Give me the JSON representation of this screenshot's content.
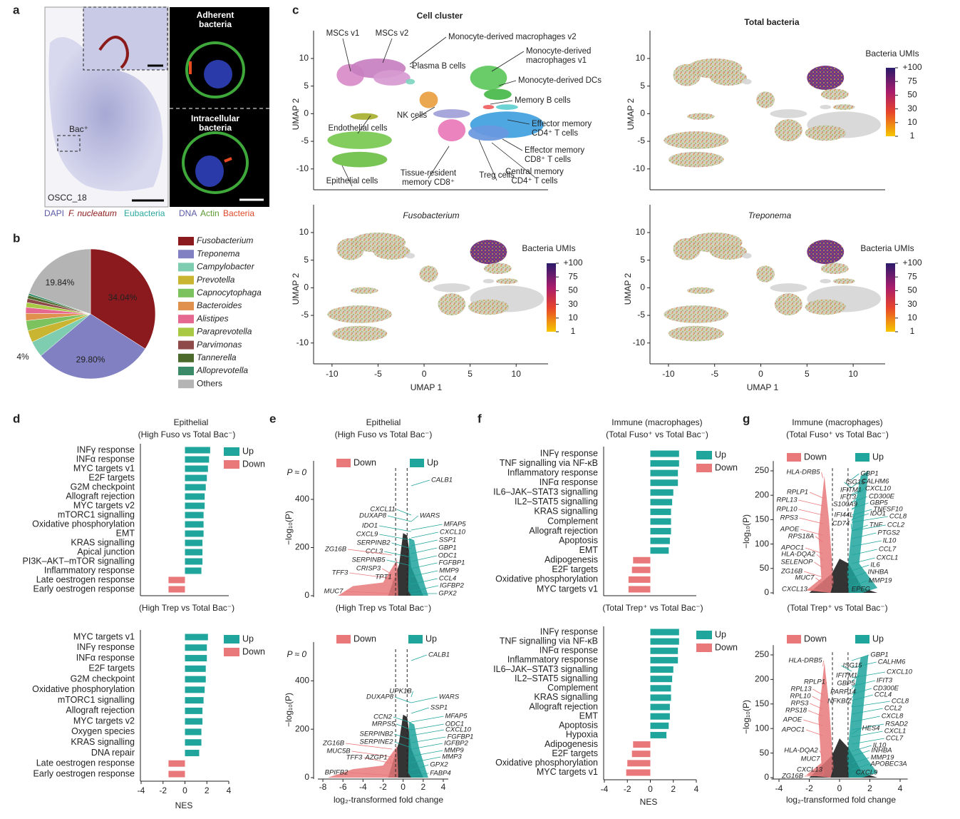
{
  "panel_labels": [
    "a",
    "b",
    "c",
    "d",
    "e",
    "f",
    "g"
  ],
  "panel_a": {
    "inset_label": "Bac⁺",
    "sample_id": "OSCC_18",
    "stain_legend": [
      "DAPI",
      "F. nucleatum",
      "Eubacteria"
    ],
    "adherent_label": [
      "Adherent",
      "bacteria"
    ],
    "intracellular_label": [
      "Intracellular",
      "bacteria"
    ],
    "channel_legend": [
      "DNA",
      "Actin",
      "Bacteria"
    ]
  },
  "chart_data": [
    {
      "type": "pie",
      "categories": [
        "Fusobacterium",
        "Treponema",
        "Campylobacter",
        "Prevotella",
        "Capnocytophaga",
        "Bacteroides",
        "Alistipes",
        "Paraprevotella",
        "Parvimonas",
        "Tannerella",
        "Alloprevotella",
        "Others"
      ],
      "values": [
        34.04,
        29.8,
        4,
        3,
        2.5,
        1.8,
        1.5,
        1.2,
        1.0,
        0.8,
        0.52,
        19.84
      ],
      "value_labels": [
        "34.04%",
        "29.80%",
        "4%",
        null,
        null,
        null,
        null,
        null,
        null,
        null,
        null,
        "19.84%"
      ],
      "colors": [
        "#8b1a1e",
        "#8080c2",
        "#7fcdb0",
        "#c9b531",
        "#7cc25e",
        "#e0914e",
        "#e4688f",
        "#a9c843",
        "#8d4a48",
        "#4b6a2c",
        "#3b8a68",
        "#b4b4b4"
      ]
    },
    {
      "type": "bar",
      "title": "Epithelial",
      "subtitle": "(High Fuso vs Total Bac⁻)",
      "xlim": [
        -4,
        4
      ],
      "categories": [
        "INFγ response",
        "INFα response",
        "MYC targets v1",
        "E2F targets",
        "G2M checkpoint",
        "Allograft rejection",
        "MYC targets v2",
        "mTORC1 signalling",
        "Oxidative phosphorylation",
        "EMT",
        "KRAS signalling",
        "Apical junction",
        "PI3K–AKT–mTOR signalling",
        "Inflammatory response",
        "Late oestrogen response",
        "Early oestrogen response"
      ],
      "values": [
        2.3,
        2.2,
        2.1,
        2.0,
        1.9,
        1.8,
        1.8,
        1.7,
        1.7,
        1.7,
        1.6,
        1.6,
        1.6,
        1.5,
        -1.5,
        -1.5
      ],
      "legend": [
        {
          "name": "Up",
          "color": "#1fa59c"
        },
        {
          "name": "Down",
          "color": "#e8787a"
        }
      ]
    },
    {
      "type": "bar",
      "subtitle": "(High Trep vs Total Bac⁻)",
      "xlim": [
        -4,
        4
      ],
      "xticks": [
        -4,
        -2,
        0,
        2,
        4
      ],
      "xlabel": "NES",
      "categories": [
        "MYC targets v1",
        "INFγ response",
        "INFα response",
        "E2F targets",
        "G2M checkpoint",
        "Oxidative phosphorylation",
        "mTORC1 signalling",
        "Allograft rejection",
        "MYC targets v2",
        "Oxygen species",
        "KRAS signalling",
        "DNA repair",
        "Late oestrogen response",
        "Early oestrogen response"
      ],
      "values": [
        2.1,
        2.0,
        2.0,
        1.9,
        1.9,
        1.8,
        1.7,
        1.6,
        1.6,
        1.5,
        1.5,
        1.3,
        -1.5,
        -1.5
      ],
      "legend": [
        {
          "name": "Up",
          "color": "#1fa59c"
        },
        {
          "name": "Down",
          "color": "#e8787a"
        }
      ]
    },
    {
      "type": "bar",
      "title": "Immune (macrophages)",
      "subtitle": "(Total Fuso⁺ vs Total Bac⁻)",
      "xlim": [
        -4,
        4
      ],
      "categories": [
        "INFγ response",
        "TNF signalling via NF-κB",
        "Inflammatory response",
        "INFα response",
        "IL6–JAK–STAT3 signalling",
        "IL2–STAT5 signalling",
        "KRAS signalling",
        "Complement",
        "Allograft rejection",
        "Apoptosis",
        "EMT",
        "Adipogenesis",
        "E2F targets",
        "Oxidative phosphorylation",
        "MYC targets v1"
      ],
      "values": [
        2.5,
        2.5,
        2.4,
        2.4,
        2.0,
        1.9,
        1.8,
        1.8,
        1.8,
        1.7,
        1.6,
        -1.5,
        -1.6,
        -1.9,
        -1.9
      ],
      "legend": [
        {
          "name": "Up",
          "color": "#1fa59c"
        },
        {
          "name": "Down",
          "color": "#e8787a"
        }
      ]
    },
    {
      "type": "bar",
      "subtitle": "(Total Trep⁺ vs Total Bac⁻)",
      "xlim": [
        -4,
        4
      ],
      "xticks": [
        -4,
        -2,
        0,
        2,
        4
      ],
      "xlabel": "NES",
      "categories": [
        "INFγ response",
        "TNF signalling via NF-κB",
        "INFα response",
        "Inflammatory response",
        "IL6–JAK–STAT3 signalling",
        "IL2–STAT5 signalling",
        "Complement",
        "KRAS signalling",
        "Allograft rejection",
        "EMT",
        "Apoptosis",
        "Hypoxia",
        "Adipogenesis",
        "E2F targets",
        "Oxidative phosphorylation",
        "MYC targets v1"
      ],
      "values": [
        2.5,
        2.5,
        2.4,
        2.4,
        2.0,
        1.9,
        1.8,
        1.8,
        1.7,
        1.7,
        1.6,
        1.4,
        -1.5,
        -1.6,
        -2.0,
        -2.1
      ],
      "legend": [
        {
          "name": "Up",
          "color": "#1fa59c"
        },
        {
          "name": "Down",
          "color": "#e8787a"
        }
      ]
    },
    {
      "type": "volcano",
      "title": "Epithelial",
      "subtitle": "(High Fuso vs Total Bac⁻)",
      "p_label": "P ≈ 0",
      "xlim": [
        -8.5,
        4.5
      ],
      "ylim": [
        0,
        560
      ],
      "yticks": [
        0,
        200,
        400
      ],
      "ylabel": "−log₁₀(P)",
      "thresholds": [
        -0.75,
        0.4
      ],
      "legend": [
        {
          "name": "Down",
          "color": "#e8787a"
        },
        {
          "name": "Up",
          "color": "#1fa59c"
        }
      ],
      "genes_up": [
        "CALB1",
        "WARS",
        "MFAP5",
        "CXCL10",
        "SSP1",
        "GBP1",
        "ODC1",
        "FGFBP1",
        "MMP9",
        "CCL4",
        "IGFBP2",
        "GPX2",
        "CXCL11",
        "DUXAP8",
        "IDO1",
        "CXCL9",
        "SERPINB2",
        "CCL3",
        "SERPINB5"
      ],
      "genes_down": [
        "ZG16B",
        "TFF3",
        "MUC7",
        "CRISP3",
        "TPT1"
      ]
    },
    {
      "type": "volcano",
      "subtitle": "(High Trep vs Total Bac⁻)",
      "p_label": "P ≈ 0",
      "xlim": [
        -8.5,
        4.5
      ],
      "ylim": [
        0,
        560
      ],
      "yticks": [
        0,
        200,
        400
      ],
      "xticks": [
        -8,
        -6,
        -4,
        -2,
        0,
        2,
        4
      ],
      "ylabel": "−log₁₀(P)",
      "xlabel": "log₂-transformed fold change",
      "thresholds": [
        -0.75,
        0.4
      ],
      "legend": [
        {
          "name": "Down",
          "color": "#e8787a"
        },
        {
          "name": "Up",
          "color": "#1fa59c"
        }
      ],
      "genes_up": [
        "CALB1",
        "UPK1B",
        "WARS",
        "SSP1",
        "MFAP5",
        "ODC1",
        "CXCL10",
        "FGFBP1",
        "IGFBP2",
        "MMP9",
        "MMP3",
        "GPX2",
        "FABP4",
        "DUXAP8",
        "CCN2",
        "MRPS5",
        "SERPINB2",
        "SERPINE2"
      ],
      "genes_down": [
        "ZG16B",
        "MUC5B",
        "TFF3",
        "AZGP1",
        "BPIFB2"
      ]
    },
    {
      "type": "volcano",
      "title": "Immune (macrophages)",
      "subtitle": "(Total Fuso⁺ vs Total Bac⁻)",
      "xlim": [
        -4.5,
        4.5
      ],
      "ylim": [
        0,
        270
      ],
      "yticks": [
        0,
        50,
        100,
        150,
        200,
        250
      ],
      "ylabel": "−log₁₀(P)",
      "thresholds": [
        -0.47,
        0.56
      ],
      "legend": [
        {
          "name": "Down",
          "color": "#e8787a"
        },
        {
          "name": "Up",
          "color": "#1fa59c"
        }
      ],
      "genes_up": [
        "GBP1",
        "CALHM6",
        "ISG15",
        "CXCL10",
        "IFITM1",
        "IFIT3",
        "CD300E",
        "GBP5",
        "S100A9",
        "TNFSF10",
        "IDO1",
        "IFI44L",
        "CCL8",
        "CD74",
        "TNF",
        "CCL2",
        "PTGS2",
        "IL10",
        "CCL7",
        "CXCL1",
        "IL6",
        "INHBA",
        "MMP19",
        "EPEG"
      ],
      "genes_down": [
        "HLA-DRB5",
        "RPLP1",
        "RPL13",
        "RPL10",
        "RPS3",
        "APOE",
        "RPS18A",
        "APOC1",
        "HLA-DQA2",
        "SELENOP",
        "ZG16B",
        "MUC7",
        "CXCL13"
      ]
    },
    {
      "type": "volcano",
      "subtitle": "(Total Trep⁺ vs Total Bac⁻)",
      "xlim": [
        -4.5,
        4.5
      ],
      "ylim": [
        0,
        270
      ],
      "yticks": [
        0,
        50,
        100,
        150,
        200,
        250
      ],
      "xticks": [
        -4,
        -2,
        0,
        2,
        4
      ],
      "ylabel": "−log₁₀(P)",
      "xlabel": "log₂-transformed fold change",
      "thresholds": [
        -0.47,
        0.56
      ],
      "legend": [
        {
          "name": "Down",
          "color": "#e8787a"
        },
        {
          "name": "Up",
          "color": "#1fa59c"
        }
      ],
      "genes_up": [
        "GBP1",
        "CALHM6",
        "ISG15",
        "CXCL10",
        "IFITM1",
        "GBP5",
        "IFIT3",
        "CD300E",
        "PARP14",
        "CCL4",
        "NFKBIZ",
        "CCL8",
        "CCL2",
        "CXCL8",
        "RSAD2",
        "HES4",
        "CXCL1",
        "CCL7",
        "IL10",
        "INHBA",
        "MMP19",
        "APOBEC3A",
        "CXCL9"
      ],
      "genes_down": [
        "HLA-DRB5",
        "RPLP1",
        "RPL13",
        "RPL10",
        "RPS3",
        "RPS18",
        "APOE",
        "APOC1",
        "HLA-DQA2",
        "MUC7",
        "CXCL13",
        "ZG16B"
      ]
    },
    {
      "type": "umap",
      "title": "Cell cluster",
      "xlim": [
        -12,
        13
      ],
      "ylim": [
        -13,
        14
      ],
      "yticks": [
        -10,
        -5,
        0,
        5,
        10
      ],
      "ylabel": "UMAP 2",
      "annotations": [
        [
          "MSCs v1"
        ],
        [
          "MSCs v2"
        ],
        [
          "Monocyte-derived macrophages v2"
        ],
        [
          "Plasma B cells"
        ],
        [
          "Monocyte-derived",
          "macrophages v1"
        ],
        [
          "Monocyte-derived DCs"
        ],
        [
          "Memory B cells"
        ],
        [
          "NK cells"
        ],
        [
          "Effector memory",
          "CD4⁺ T cells"
        ],
        [
          "Endothelial cells"
        ],
        [
          "Effector memory",
          "CD8⁺ T cells"
        ],
        [
          "Tissue-resident",
          "memory CD8⁺"
        ],
        [
          "Treg cells"
        ],
        [
          "Central memory",
          "CD4⁺ T cells"
        ],
        [
          "Epithelial cells"
        ]
      ]
    },
    {
      "type": "umap",
      "title": "Total bacteria",
      "xlim": [
        -12,
        13
      ],
      "ylim": [
        -13,
        14
      ],
      "yticks": [
        -10,
        -5,
        0,
        5,
        10
      ],
      "ylabel": "UMAP 2",
      "colorbar": {
        "label": "Bacteria UMIs",
        "labels": [
          "+100",
          "75",
          "50",
          "30",
          "10",
          "1"
        ]
      }
    },
    {
      "type": "umap",
      "title": "Fusobacterium",
      "xlim": [
        -12,
        13
      ],
      "ylim": [
        -13,
        14
      ],
      "yticks": [
        -10,
        -5,
        0,
        5,
        10
      ],
      "xticks": [
        -10,
        -5,
        0,
        5,
        10
      ],
      "ylabel": "UMAP 2",
      "xlabel": "UMAP 1",
      "colorbar": {
        "label": "Bacteria UMIs",
        "labels": [
          "+100",
          "75",
          "50",
          "30",
          "10",
          "1"
        ]
      }
    },
    {
      "type": "umap",
      "title": "Treponema",
      "xlim": [
        -12,
        13
      ],
      "ylim": [
        -13,
        14
      ],
      "yticks": [
        -10,
        -5,
        0,
        5,
        10
      ],
      "xticks": [
        -10,
        -5,
        0,
        5,
        10
      ],
      "ylabel": "UMAP 2",
      "xlabel": "UMAP 1",
      "colorbar": {
        "label": "Bacteria UMIs",
        "labels": [
          "+100",
          "75",
          "50",
          "30",
          "10",
          "1"
        ]
      }
    }
  ]
}
